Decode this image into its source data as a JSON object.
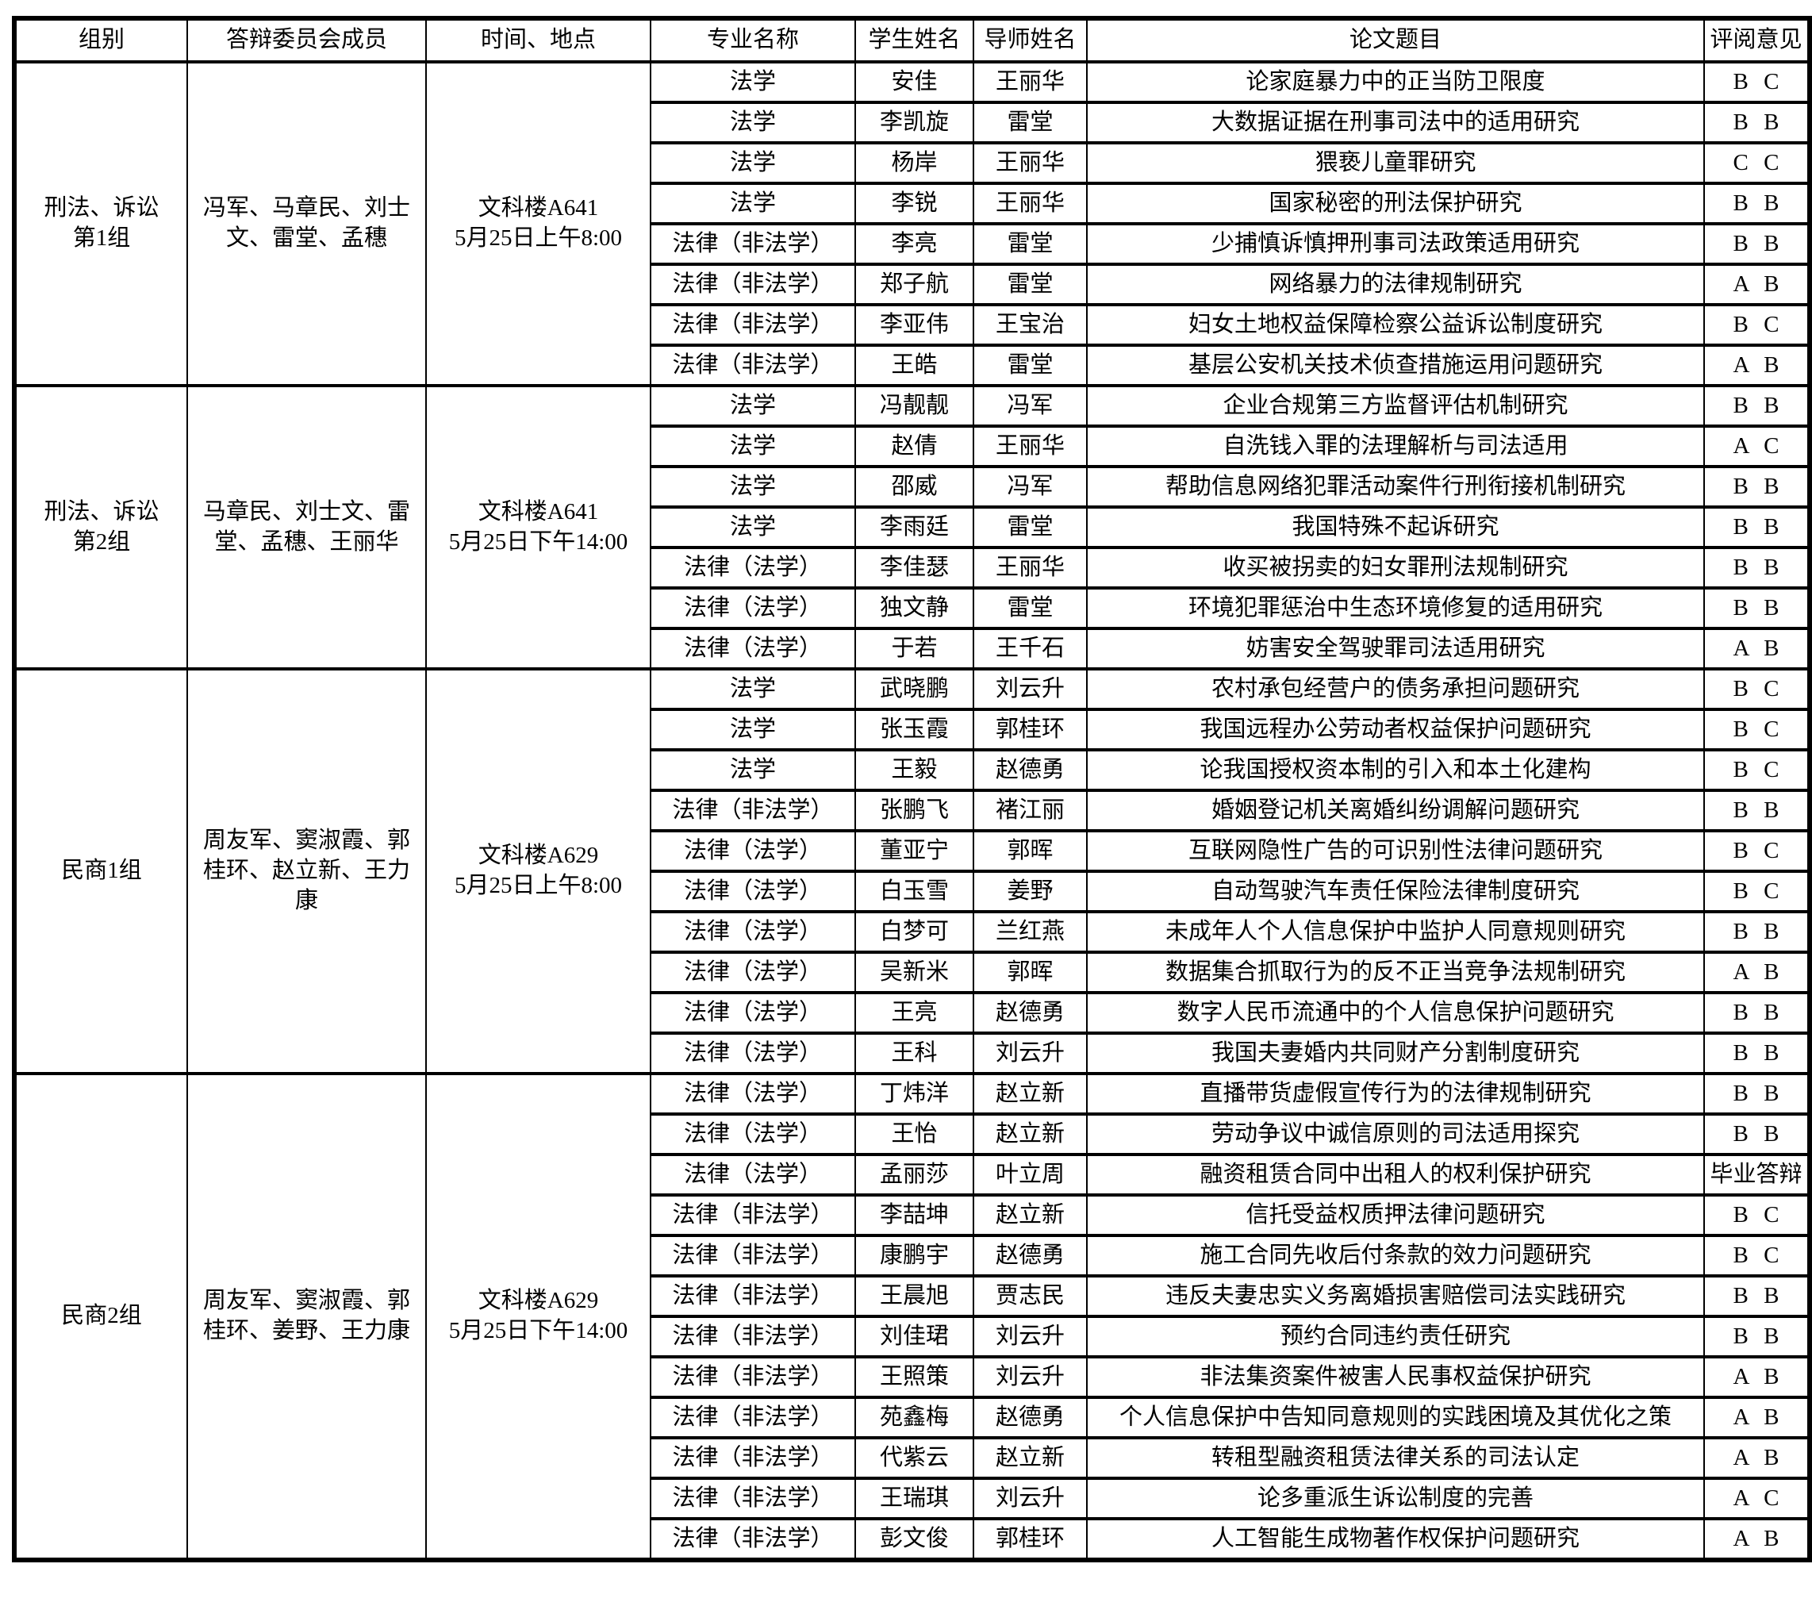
{
  "table": {
    "columns": [
      "组别",
      "答辩委员会成员",
      "时间、地点",
      "专业名称",
      "学生姓名",
      "导师姓名",
      "论文题目",
      "评阅意见"
    ],
    "groups": [
      {
        "group_name": "刑法、诉讼\n第1组",
        "committee": "冯军、马章民、刘士文、雷堂、孟穗",
        "time_place": "文科楼A641\n5月25日上午8:00",
        "rows": [
          {
            "major": "法学",
            "student": "安佳",
            "advisor": "王丽华",
            "title": "论家庭暴力中的正当防卫限度",
            "review": "B C"
          },
          {
            "major": "法学",
            "student": "李凯旋",
            "advisor": "雷堂",
            "title": "大数据证据在刑事司法中的适用研究",
            "review": "B B"
          },
          {
            "major": "法学",
            "student": "杨岸",
            "advisor": "王丽华",
            "title": "猥亵儿童罪研究",
            "review": "C C"
          },
          {
            "major": "法学",
            "student": "李锐",
            "advisor": "王丽华",
            "title": "国家秘密的刑法保护研究",
            "review": "B B"
          },
          {
            "major": "法律（非法学）",
            "student": "李亮",
            "advisor": "雷堂",
            "title": "少捕慎诉慎押刑事司法政策适用研究",
            "review": "B B"
          },
          {
            "major": "法律（非法学）",
            "student": "郑子航",
            "advisor": "雷堂",
            "title": "网络暴力的法律规制研究",
            "review": "A B"
          },
          {
            "major": "法律（非法学）",
            "student": "李亚伟",
            "advisor": "王宝治",
            "title": "妇女土地权益保障检察公益诉讼制度研究",
            "review": "B C"
          },
          {
            "major": "法律（非法学）",
            "student": "王皓",
            "advisor": "雷堂",
            "title": "基层公安机关技术侦查措施运用问题研究",
            "review": "A B"
          }
        ]
      },
      {
        "group_name": "刑法、诉讼\n第2组",
        "committee": "马章民、刘士文、雷堂、孟穗、王丽华",
        "time_place": "文科楼A641\n5月25日下午14:00",
        "rows": [
          {
            "major": "法学",
            "student": "冯靓靓",
            "advisor": "冯军",
            "title": "企业合规第三方监督评估机制研究",
            "review": "B B"
          },
          {
            "major": "法学",
            "student": "赵倩",
            "advisor": "王丽华",
            "title": "自洗钱入罪的法理解析与司法适用",
            "review": "A C"
          },
          {
            "major": "法学",
            "student": "邵威",
            "advisor": "冯军",
            "title": "帮助信息网络犯罪活动案件行刑衔接机制研究",
            "review": "B B"
          },
          {
            "major": "法学",
            "student": "李雨廷",
            "advisor": "雷堂",
            "title": "我国特殊不起诉研究",
            "review": "B B"
          },
          {
            "major": "法律（法学）",
            "student": "李佳瑟",
            "advisor": "王丽华",
            "title": "收买被拐卖的妇女罪刑法规制研究",
            "review": "B B"
          },
          {
            "major": "法律（法学）",
            "student": "独文静",
            "advisor": "雷堂",
            "title": "环境犯罪惩治中生态环境修复的适用研究",
            "review": "B B"
          },
          {
            "major": "法律（法学）",
            "student": "于若",
            "advisor": "王千石",
            "title": "妨害安全驾驶罪司法适用研究",
            "review": "A B"
          }
        ]
      },
      {
        "group_name": "民商1组",
        "committee": "周友军、窦淑霞、郭桂环、赵立新、王力康",
        "time_place": "文科楼A629\n5月25日上午8:00",
        "rows": [
          {
            "major": "法学",
            "student": "武晓鹏",
            "advisor": "刘云升",
            "title": "农村承包经营户的债务承担问题研究",
            "review": "B C"
          },
          {
            "major": "法学",
            "student": "张玉霞",
            "advisor": "郭桂环",
            "title": "我国远程办公劳动者权益保护问题研究",
            "review": "B C"
          },
          {
            "major": "法学",
            "student": "王毅",
            "advisor": "赵德勇",
            "title": "论我国授权资本制的引入和本土化建构",
            "review": "B C"
          },
          {
            "major": "法律（非法学）",
            "student": "张鹏飞",
            "advisor": "褚江丽",
            "title": "婚姻登记机关离婚纠纷调解问题研究",
            "review": "B B"
          },
          {
            "major": "法律（法学）",
            "student": "董亚宁",
            "advisor": "郭晖",
            "title": "互联网隐性广告的可识别性法律问题研究",
            "review": "B C"
          },
          {
            "major": "法律（法学）",
            "student": "白玉雪",
            "advisor": "姜野",
            "title": "自动驾驶汽车责任保险法律制度研究",
            "review": "B C"
          },
          {
            "major": "法律（法学）",
            "student": "白梦可",
            "advisor": "兰红燕",
            "title": "未成年人个人信息保护中监护人同意规则研究",
            "review": "B B"
          },
          {
            "major": "法律（法学）",
            "student": "吴新米",
            "advisor": "郭晖",
            "title": "数据集合抓取行为的反不正当竞争法规制研究",
            "review": "A B"
          },
          {
            "major": "法律（法学）",
            "student": "王亮",
            "advisor": "赵德勇",
            "title": "数字人民币流通中的个人信息保护问题研究",
            "review": "B B"
          },
          {
            "major": "法律（法学）",
            "student": "王科",
            "advisor": "刘云升",
            "title": "我国夫妻婚内共同财产分割制度研究",
            "review": "B B"
          }
        ]
      },
      {
        "group_name": "民商2组",
        "committee": "周友军、窦淑霞、郭桂环、姜野、王力康",
        "time_place": "文科楼A629\n5月25日下午14:00",
        "rows": [
          {
            "major": "法律（法学）",
            "student": "丁炜洋",
            "advisor": "赵立新",
            "title": "直播带货虚假宣传行为的法律规制研究",
            "review": "B B"
          },
          {
            "major": "法律（法学）",
            "student": "王怡",
            "advisor": "赵立新",
            "title": "劳动争议中诚信原则的司法适用探究",
            "review": "B B"
          },
          {
            "major": "法律（法学）",
            "student": "孟丽莎",
            "advisor": "叶立周",
            "title": "融资租赁合同中出租人的权利保护研究",
            "review": "毕业答辩"
          },
          {
            "major": "法律（非法学）",
            "student": "李喆坤",
            "advisor": "赵立新",
            "title": "信托受益权质押法律问题研究",
            "review": "B C"
          },
          {
            "major": "法律（非法学）",
            "student": "康鹏宇",
            "advisor": "赵德勇",
            "title": "施工合同先收后付条款的效力问题研究",
            "review": "B C"
          },
          {
            "major": "法律（非法学）",
            "student": "王晨旭",
            "advisor": "贾志民",
            "title": "违反夫妻忠实义务离婚损害赔偿司法实践研究",
            "review": "B B"
          },
          {
            "major": "法律（非法学）",
            "student": "刘佳珺",
            "advisor": "刘云升",
            "title": "预约合同违约责任研究",
            "review": "B B"
          },
          {
            "major": "法律（非法学）",
            "student": "王照策",
            "advisor": "刘云升",
            "title": "非法集资案件被害人民事权益保护研究",
            "review": "A B"
          },
          {
            "major": "法律（非法学）",
            "student": "苑鑫梅",
            "advisor": "赵德勇",
            "title": "个人信息保护中告知同意规则的实践困境及其优化之策",
            "review": "A B"
          },
          {
            "major": "法律（非法学）",
            "student": "代紫云",
            "advisor": "赵立新",
            "title": "转租型融资租赁法律关系的司法认定",
            "review": "A B"
          },
          {
            "major": "法律（非法学）",
            "student": "王瑞琪",
            "advisor": "刘云升",
            "title": "论多重派生诉讼制度的完善",
            "review": "A C"
          },
          {
            "major": "法律（非法学）",
            "student": "彭文俊",
            "advisor": "郭桂环",
            "title": "人工智能生成物著作权保护问题研究",
            "review": "A B"
          }
        ]
      }
    ]
  }
}
